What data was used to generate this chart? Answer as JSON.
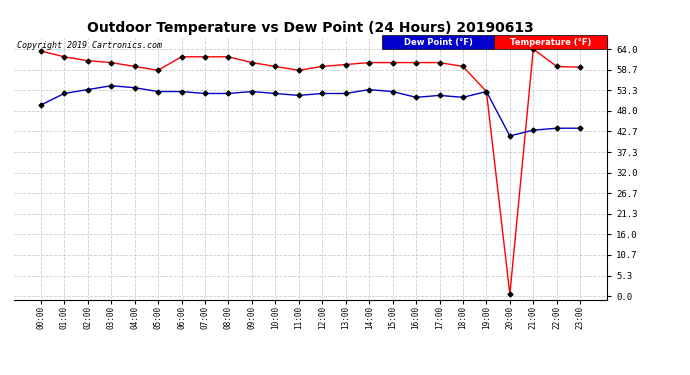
{
  "title": "Outdoor Temperature vs Dew Point (24 Hours) 20190613",
  "copyright": "Copyright 2019 Cartronics.com",
  "background_color": "#ffffff",
  "plot_bg_color": "#ffffff",
  "grid_color": "#cccccc",
  "x_labels": [
    "00:00",
    "01:00",
    "02:00",
    "03:00",
    "04:00",
    "05:00",
    "06:00",
    "07:00",
    "08:00",
    "09:00",
    "10:00",
    "11:00",
    "12:00",
    "13:00",
    "14:00",
    "15:00",
    "16:00",
    "17:00",
    "18:00",
    "19:00",
    "20:00",
    "21:00",
    "22:00",
    "23:00"
  ],
  "temperature": [
    63.5,
    62.0,
    61.0,
    60.5,
    59.5,
    58.5,
    62.0,
    62.0,
    62.0,
    60.5,
    59.5,
    58.5,
    59.5,
    60.0,
    60.5,
    60.5,
    60.5,
    60.5,
    59.5,
    53.0,
    0.5,
    64.0,
    59.5,
    59.3
  ],
  "dew_point": [
    49.5,
    52.5,
    53.5,
    54.5,
    54.0,
    53.0,
    53.0,
    52.5,
    52.5,
    53.0,
    52.5,
    52.0,
    52.5,
    52.5,
    53.5,
    53.0,
    51.5,
    52.0,
    51.5,
    53.0,
    41.5,
    43.0,
    43.5,
    43.5
  ],
  "temp_color": "#ff0000",
  "dew_color": "#0000cc",
  "marker": "D",
  "marker_size": 2.5,
  "marker_color": "#000000",
  "y_ticks": [
    0.0,
    5.3,
    10.7,
    16.0,
    21.3,
    26.7,
    32.0,
    37.3,
    42.7,
    48.0,
    53.3,
    58.7,
    64.0
  ],
  "ylim": [
    -1.0,
    67.0
  ],
  "legend_dew_label": "Dew Point (°F)",
  "legend_temp_label": "Temperature (°F)",
  "legend_dew_bg": "#0000cc",
  "legend_temp_bg": "#ff0000",
  "title_fontsize": 10,
  "copyright_fontsize": 6
}
